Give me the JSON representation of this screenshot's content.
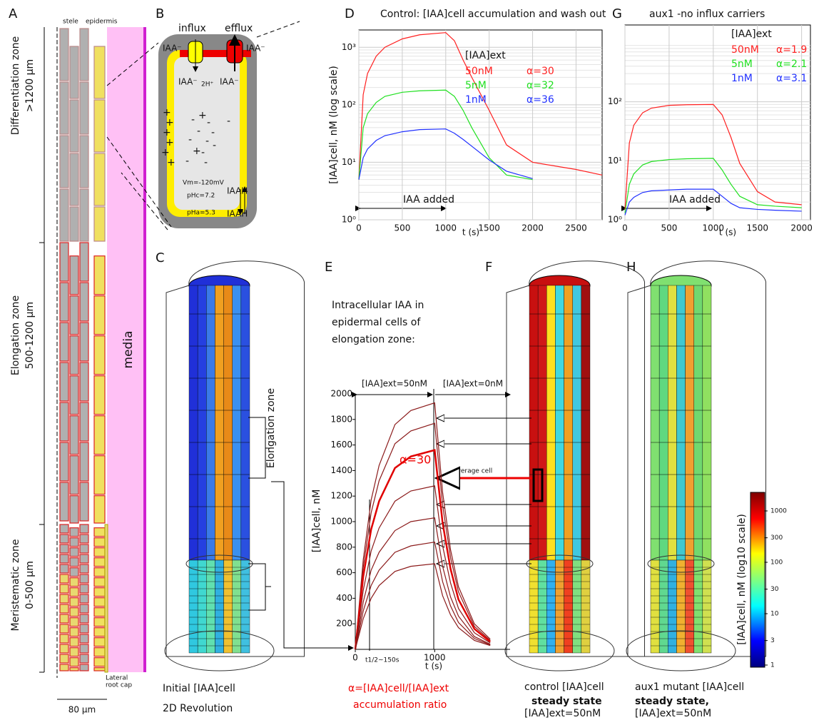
{
  "panels": [
    "A",
    "B",
    "C",
    "D",
    "E",
    "F",
    "G",
    "H"
  ],
  "panel_a": {
    "zones": [
      "Differentiation zone",
      ">1200 µm",
      "Elongation zone",
      "500-1200 µm",
      "Meristematic zone",
      "0-500 µm"
    ],
    "stele": "stele",
    "epidermis": "epidermis",
    "media": "media",
    "cap": [
      "Lateral",
      "root cap"
    ],
    "scale": "80 µm"
  },
  "panel_b": {
    "influx": "influx",
    "efflux": "efflux",
    "anion": "IAA⁻",
    "protons": "2H⁺",
    "plus": "+",
    "minus": "-",
    "vm": "Vm=-120mV",
    "phc": "pHc=7.2",
    "pha": "pHa=5.3",
    "neutral": "IAAH"
  },
  "panel_c": {
    "zone": "Elongation zone",
    "caption": [
      "Initial [IAA]cell",
      "2D Revolution"
    ]
  },
  "panel_e_text": {
    "heading": [
      "Intracellular IAA in",
      "epidermal cells of",
      "elongation zone:"
    ],
    "phase": [
      "[IAA]ext=50nM",
      "[IAA]ext=0nM"
    ],
    "average": "average cell",
    "half": "t1/2~150s",
    "ratio": [
      "α=[IAA]cell/[IAA]ext",
      "accumulation ratio"
    ]
  },
  "panel_f": {
    "caption": [
      "control [IAA]cell",
      "steady state",
      "[IAA]ext=50nM"
    ]
  },
  "panel_h": {
    "caption": [
      "aux1 mutant [IAA]cell",
      "steady state,",
      "[IAA]ext=50nM"
    ]
  },
  "colorbar": {
    "label": "[IAA]cell, nM (log10 scale)",
    "ticks": [
      1000,
      300,
      100,
      30,
      10,
      3,
      1
    ]
  },
  "chart_data": [
    {
      "type": "line",
      "title": "Control: [IAA]cell accumulation and wash out",
      "xlabel": "t (s)",
      "ylabel": "[IAA]cell, nM (log scale)",
      "log": true,
      "grid": true,
      "legend_title": "[IAA]ext",
      "annotation": "IAA added",
      "x": [
        0,
        50,
        100,
        200,
        300,
        500,
        700,
        1000,
        1100,
        1200,
        1300,
        1500,
        1700,
        2000,
        2500,
        2800
      ],
      "series": [
        {
          "name": "50nM",
          "label": "α=30",
          "color": "#ff2020",
          "values": [
            5,
            150,
            350,
            700,
            1000,
            1400,
            1650,
            1800,
            1300,
            600,
            300,
            80,
            20,
            10,
            7.5,
            6
          ]
        },
        {
          "name": "5nM",
          "label": "α=32",
          "color": "#20e020",
          "values": [
            5,
            40,
            70,
            110,
            140,
            165,
            175,
            180,
            140,
            80,
            40,
            12,
            6,
            5,
            null,
            null
          ]
        },
        {
          "name": "1nM",
          "label": "α=36",
          "color": "#2030ff",
          "values": [
            5,
            12,
            17,
            24,
            29,
            34,
            37,
            38,
            32,
            25,
            19,
            11,
            7,
            5.2,
            null,
            null
          ]
        }
      ],
      "xlim": [
        0,
        2800
      ],
      "xticks": [
        0,
        500,
        1000,
        1500,
        2000,
        2500
      ],
      "ylim": [
        1,
        2000
      ],
      "yticks": [
        {
          "value": 1,
          "label": "10⁰"
        },
        {
          "value": 10,
          "label": "10¹"
        },
        {
          "value": 100,
          "label": "10²"
        },
        {
          "value": 1000,
          "label": "10³"
        }
      ]
    },
    {
      "type": "line",
      "title": "aux1 -no influx carriers",
      "xlabel": "t (s)",
      "log": true,
      "grid": true,
      "legend_title": "[IAA]ext",
      "annotation": "IAA added",
      "x": [
        0,
        50,
        100,
        200,
        300,
        500,
        700,
        1000,
        1100,
        1200,
        1300,
        1500,
        1700,
        2000
      ],
      "series": [
        {
          "name": "50nM",
          "label": "α=1.9",
          "color": "#ff2020",
          "values": [
            1.5,
            20,
            40,
            65,
            78,
            87,
            89,
            90,
            60,
            25,
            9,
            3,
            2,
            1.8
          ]
        },
        {
          "name": "5nM",
          "label": "α=2.1",
          "color": "#20e020",
          "values": [
            1.3,
            4,
            6,
            8.5,
            9.7,
            10.5,
            10.8,
            11,
            7,
            4,
            2.5,
            1.8,
            1.7,
            1.6
          ]
        },
        {
          "name": "1nM",
          "label": "α=3.1",
          "color": "#2030ff",
          "values": [
            1.2,
            2,
            2.4,
            2.9,
            3.1,
            3.2,
            3.3,
            3.3,
            2.5,
            1.9,
            1.6,
            1.5,
            1.45,
            1.4
          ]
        }
      ],
      "xlim": [
        0,
        2100
      ],
      "xticks": [
        0,
        500,
        1000,
        1500,
        2000
      ],
      "ylim": [
        1,
        2000
      ],
      "yticks": [
        {
          "value": 1,
          "label": "10⁰"
        },
        {
          "value": 10,
          "label": "10¹"
        },
        {
          "value": 100,
          "label": "10²"
        }
      ]
    },
    {
      "type": "line",
      "xlabel": "t (s)",
      "ylabel": "[IAA]cell, nM",
      "log": false,
      "grid": false,
      "annotation": "α=30",
      "x": [
        0,
        100,
        200,
        300,
        500,
        700,
        1000,
        1100,
        1200,
        1300,
        1500,
        1700
      ],
      "series": [
        {
          "color": "#8b1a1a",
          "values": [
            0,
            700,
            1170,
            1440,
            1760,
            1870,
            1930,
            1230,
            780,
            490,
            200,
            80
          ]
        },
        {
          "color": "#8b1a1a",
          "values": [
            0,
            640,
            1070,
            1320,
            1610,
            1710,
            1770,
            1130,
            720,
            450,
            180,
            70
          ]
        },
        {
          "color": "#e00000",
          "values": [
            0,
            570,
            940,
            1160,
            1420,
            1510,
            1560,
            990,
            630,
            390,
            160,
            60
          ]
        },
        {
          "color": "#8b1a1a",
          "values": [
            0,
            460,
            770,
            950,
            1160,
            1240,
            1280,
            810,
            520,
            320,
            130,
            50
          ]
        },
        {
          "color": "#8b1a1a",
          "values": [
            0,
            370,
            620,
            760,
            930,
            1000,
            1030,
            650,
            410,
            260,
            100,
            40
          ]
        },
        {
          "color": "#8b1a1a",
          "values": [
            0,
            300,
            500,
            620,
            760,
            810,
            840,
            530,
            340,
            210,
            85,
            35
          ]
        },
        {
          "color": "#8b1a1a",
          "values": [
            0,
            240,
            400,
            500,
            610,
            650,
            670,
            420,
            270,
            170,
            70,
            30
          ]
        }
      ],
      "xlim": [
        0,
        1950
      ],
      "xticks": [
        0,
        1000
      ],
      "ylim": [
        0,
        2000
      ],
      "yticks": [
        200,
        400,
        600,
        800,
        1000,
        1200,
        1400,
        1600,
        1800,
        2000
      ]
    }
  ]
}
